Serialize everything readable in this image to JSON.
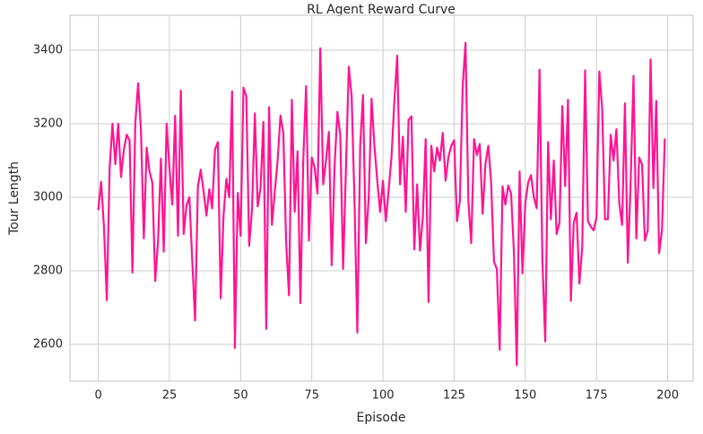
{
  "chart_data": {
    "type": "line",
    "title": "RL Agent Reward Curve",
    "xlabel": "Episode",
    "ylabel": "Tour Length",
    "x": [
      0,
      1,
      2,
      3,
      4,
      5,
      6,
      7,
      8,
      9,
      10,
      11,
      12,
      13,
      14,
      15,
      16,
      17,
      18,
      19,
      20,
      21,
      22,
      23,
      24,
      25,
      26,
      27,
      28,
      29,
      30,
      31,
      32,
      33,
      34,
      35,
      36,
      37,
      38,
      39,
      40,
      41,
      42,
      43,
      44,
      45,
      46,
      47,
      48,
      49,
      50,
      51,
      52,
      53,
      54,
      55,
      56,
      57,
      58,
      59,
      60,
      61,
      62,
      63,
      64,
      65,
      66,
      67,
      68,
      69,
      70,
      71,
      72,
      73,
      74,
      75,
      76,
      77,
      78,
      79,
      80,
      81,
      82,
      83,
      84,
      85,
      86,
      87,
      88,
      89,
      90,
      91,
      92,
      93,
      94,
      95,
      96,
      97,
      98,
      99,
      100,
      101,
      102,
      103,
      104,
      105,
      106,
      107,
      108,
      109,
      110,
      111,
      112,
      113,
      114,
      115,
      116,
      117,
      118,
      119,
      120,
      121,
      122,
      123,
      124,
      125,
      126,
      127,
      128,
      129,
      130,
      131,
      132,
      133,
      134,
      135,
      136,
      137,
      138,
      139,
      140,
      141,
      142,
      143,
      144,
      145,
      146,
      147,
      148,
      149,
      150,
      151,
      152,
      153,
      154,
      155,
      156,
      157,
      158,
      159,
      160,
      161,
      162,
      163,
      164,
      165,
      166,
      167,
      168,
      169,
      170,
      171,
      172,
      173,
      174,
      175,
      176,
      177,
      178,
      179,
      180,
      181,
      182,
      183,
      184,
      185,
      186,
      187,
      188,
      189,
      190,
      191,
      192,
      193,
      194,
      195,
      196,
      197,
      198,
      199
    ],
    "series": [
      {
        "color": "#ff1493",
        "values": [
          2965,
          3042,
          2920,
          2720,
          3080,
          3200,
          3090,
          3200,
          3055,
          3130,
          3170,
          3155,
          2795,
          3200,
          3310,
          3180,
          2888,
          3135,
          3070,
          3040,
          2772,
          2880,
          3105,
          2852,
          3200,
          3080,
          2980,
          3222,
          2895,
          3290,
          2900,
          2978,
          3000,
          2830,
          2665,
          3030,
          3075,
          3015,
          2950,
          3022,
          2970,
          3130,
          3150,
          2725,
          2950,
          3050,
          3000,
          3288,
          2590,
          3012,
          2895,
          3298,
          3275,
          2868,
          2965,
          3228,
          2975,
          3025,
          3205,
          2642,
          3245,
          2925,
          3015,
          3100,
          3222,
          3175,
          2875,
          2733,
          3265,
          2960,
          3125,
          2712,
          3100,
          3302,
          2882,
          3108,
          3080,
          3010,
          3405,
          3035,
          3100,
          3178,
          2815,
          3085,
          3232,
          3170,
          2805,
          3080,
          3355,
          3275,
          2990,
          2632,
          3140,
          3278,
          2875,
          3000,
          3268,
          3140,
          3045,
          2960,
          3045,
          2935,
          3020,
          3110,
          3260,
          3385,
          3035,
          3165,
          2960,
          3210,
          3220,
          2858,
          3035,
          2855,
          2945,
          3158,
          2715,
          3140,
          3070,
          3135,
          3100,
          3175,
          3045,
          3110,
          3140,
          3155,
          2935,
          2990,
          3300,
          3420,
          2990,
          2875,
          3158,
          3115,
          3145,
          2955,
          3090,
          3140,
          3040,
          2825,
          2805,
          2585,
          3030,
          2980,
          3032,
          3010,
          2850,
          2543,
          3070,
          2793,
          2985,
          3040,
          3060,
          3000,
          2970,
          3347,
          2830,
          2608,
          3150,
          2940,
          3100,
          2900,
          2930,
          3248,
          3030,
          3265,
          2718,
          2930,
          2958,
          2765,
          2865,
          3345,
          2935,
          2920,
          2910,
          2945,
          3342,
          3240,
          2940,
          2940,
          3170,
          3100,
          3185,
          2985,
          2925,
          3255,
          2822,
          3040,
          3330,
          2888,
          3108,
          3090,
          2882,
          2910,
          3375,
          3025,
          3262,
          2848,
          2910,
          3160
        ]
      }
    ],
    "xlim": [
      -9.95,
      208.95
    ],
    "ylim": [
      2500,
      3495
    ],
    "xticks": [
      0,
      25,
      50,
      75,
      100,
      125,
      150,
      175,
      200
    ],
    "yticks": [
      2600,
      2800,
      3000,
      3200,
      3400
    ],
    "grid": true
  }
}
